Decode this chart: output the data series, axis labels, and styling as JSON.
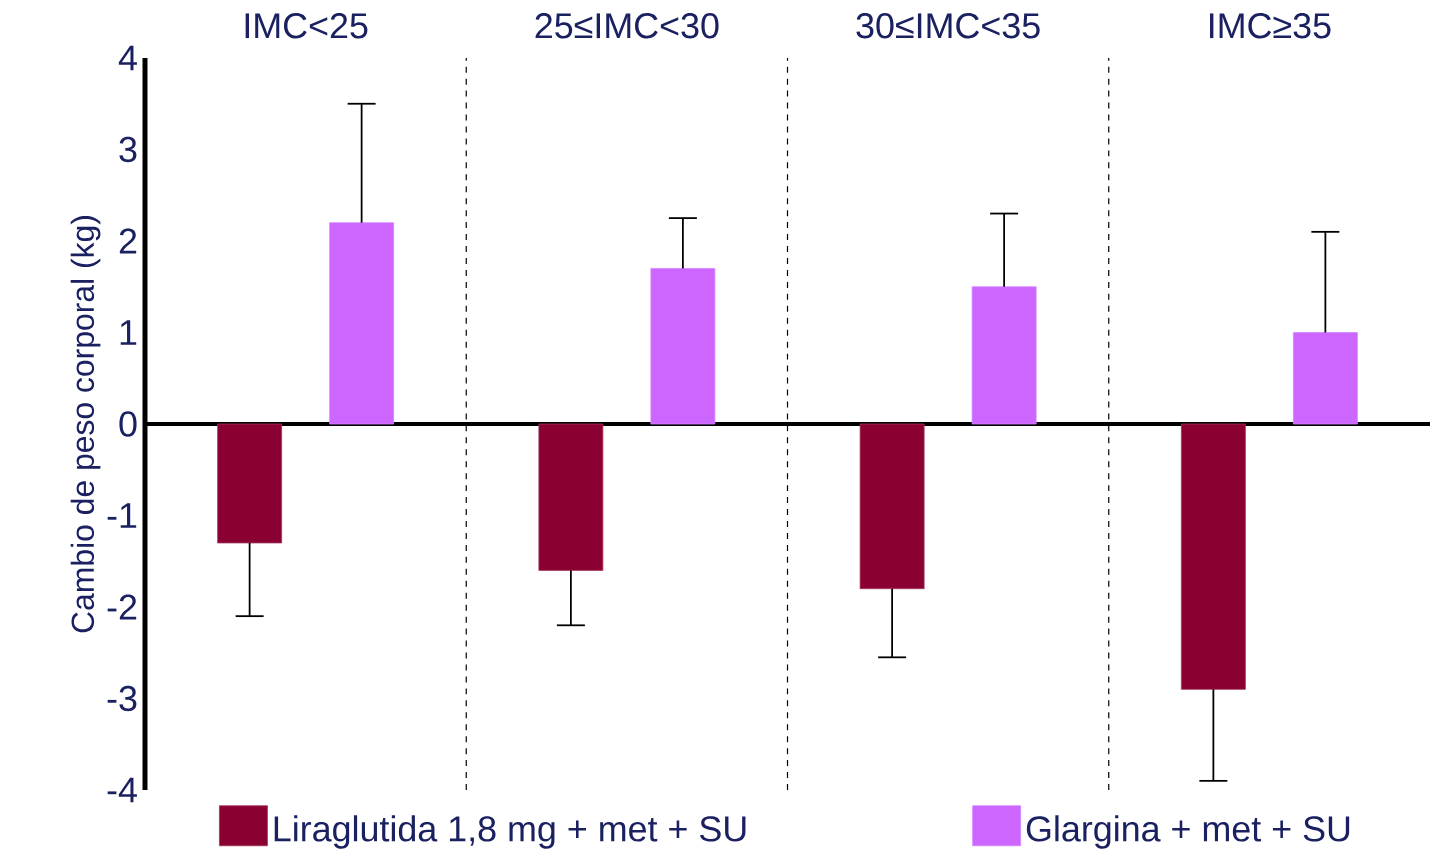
{
  "chart_data": {
    "type": "bar",
    "ylabel": "Cambio de peso corporal (kg)",
    "categories": [
      "IMC<25",
      "25≤IMC<30",
      "30≤IMC<35",
      "IMC≥35"
    ],
    "series": [
      {
        "name": "Liraglutida 1,8 mg + met + SU",
        "color": "#8b0033",
        "values": [
          -1.3,
          -1.6,
          -1.8,
          -2.9
        ],
        "errors": [
          [
            -2.1,
            -1.3
          ],
          [
            -2.2,
            -1.6
          ],
          [
            -2.55,
            -1.8
          ],
          [
            -3.9,
            -2.9
          ]
        ]
      },
      {
        "name": "Glargina + met + SU",
        "color": "#cc66ff",
        "values": [
          2.2,
          1.7,
          1.5,
          1.0
        ],
        "errors": [
          [
            2.2,
            3.5
          ],
          [
            1.7,
            2.25
          ],
          [
            1.5,
            2.3
          ],
          [
            1.0,
            2.1
          ]
        ]
      }
    ],
    "ylim": [
      -4,
      4
    ],
    "yticks": [
      -4,
      -3,
      -2,
      -1,
      0,
      1,
      2,
      3,
      4
    ],
    "grid": "x",
    "legend": "bottom"
  }
}
